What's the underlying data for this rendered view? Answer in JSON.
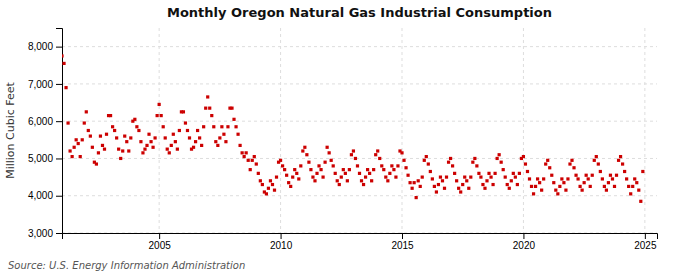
{
  "chart_data": {
    "type": "scatter",
    "title": "Monthly Oregon Natural Gas Industrial Consumption",
    "ylabel": "Million Cubic Feet",
    "source": "Source: U.S. Energy Information Administration",
    "color": "#cc0000",
    "marker": "square",
    "grid": true,
    "xlim": [
      2001.0,
      2025.5
    ],
    "xticks": [
      2005,
      2010,
      2015,
      2020,
      2025
    ],
    "ylim": [
      3000,
      8500
    ],
    "yticks": [
      {
        "value": 3000,
        "label": "3,000"
      },
      {
        "value": 4000,
        "label": "4,000"
      },
      {
        "value": 5000,
        "label": "5,000"
      },
      {
        "value": 6000,
        "label": "6,000"
      },
      {
        "value": 7000,
        "label": "7,000"
      },
      {
        "value": 8000,
        "label": "8,000"
      }
    ],
    "x": [
      2001.0,
      2001.083,
      2001.167,
      2001.25,
      2001.333,
      2001.417,
      2001.5,
      2001.583,
      2001.667,
      2001.75,
      2001.833,
      2001.917,
      2002.0,
      2002.083,
      2002.167,
      2002.25,
      2002.333,
      2002.417,
      2002.5,
      2002.583,
      2002.667,
      2002.75,
      2002.833,
      2002.917,
      2003.0,
      2003.083,
      2003.167,
      2003.25,
      2003.333,
      2003.417,
      2003.5,
      2003.583,
      2003.667,
      2003.75,
      2003.833,
      2003.917,
      2004.0,
      2004.083,
      2004.167,
      2004.25,
      2004.333,
      2004.417,
      2004.5,
      2004.583,
      2004.667,
      2004.75,
      2004.833,
      2004.917,
      2005.0,
      2005.083,
      2005.167,
      2005.25,
      2005.333,
      2005.417,
      2005.5,
      2005.583,
      2005.667,
      2005.75,
      2005.833,
      2005.917,
      2006.0,
      2006.083,
      2006.167,
      2006.25,
      2006.333,
      2006.417,
      2006.5,
      2006.583,
      2006.667,
      2006.75,
      2006.833,
      2006.917,
      2007.0,
      2007.083,
      2007.167,
      2007.25,
      2007.333,
      2007.417,
      2007.5,
      2007.583,
      2007.667,
      2007.75,
      2007.833,
      2007.917,
      2008.0,
      2008.083,
      2008.167,
      2008.25,
      2008.333,
      2008.417,
      2008.5,
      2008.583,
      2008.667,
      2008.75,
      2008.833,
      2008.917,
      2009.0,
      2009.083,
      2009.167,
      2009.25,
      2009.333,
      2009.417,
      2009.5,
      2009.583,
      2009.667,
      2009.75,
      2009.833,
      2009.917,
      2010.0,
      2010.083,
      2010.167,
      2010.25,
      2010.333,
      2010.417,
      2010.5,
      2010.583,
      2010.667,
      2010.75,
      2010.833,
      2010.917,
      2011.0,
      2011.083,
      2011.167,
      2011.25,
      2011.333,
      2011.417,
      2011.5,
      2011.583,
      2011.667,
      2011.75,
      2011.833,
      2011.917,
      2012.0,
      2012.083,
      2012.167,
      2012.25,
      2012.333,
      2012.417,
      2012.5,
      2012.583,
      2012.667,
      2012.75,
      2012.833,
      2012.917,
      2013.0,
      2013.083,
      2013.167,
      2013.25,
      2013.333,
      2013.417,
      2013.5,
      2013.583,
      2013.667,
      2013.75,
      2013.833,
      2013.917,
      2014.0,
      2014.083,
      2014.167,
      2014.25,
      2014.333,
      2014.417,
      2014.5,
      2014.583,
      2014.667,
      2014.75,
      2014.833,
      2014.917,
      2015.0,
      2015.083,
      2015.167,
      2015.25,
      2015.333,
      2015.417,
      2015.5,
      2015.583,
      2015.667,
      2015.75,
      2015.833,
      2015.917,
      2016.0,
      2016.083,
      2016.167,
      2016.25,
      2016.333,
      2016.417,
      2016.5,
      2016.583,
      2016.667,
      2016.75,
      2016.833,
      2016.917,
      2017.0,
      2017.083,
      2017.167,
      2017.25,
      2017.333,
      2017.417,
      2017.5,
      2017.583,
      2017.667,
      2017.75,
      2017.833,
      2017.917,
      2018.0,
      2018.083,
      2018.167,
      2018.25,
      2018.333,
      2018.417,
      2018.5,
      2018.583,
      2018.667,
      2018.75,
      2018.833,
      2018.917,
      2019.0,
      2019.083,
      2019.167,
      2019.25,
      2019.333,
      2019.417,
      2019.5,
      2019.583,
      2019.667,
      2019.75,
      2019.833,
      2019.917,
      2020.0,
      2020.083,
      2020.167,
      2020.25,
      2020.333,
      2020.417,
      2020.5,
      2020.583,
      2020.667,
      2020.75,
      2020.833,
      2020.917,
      2021.0,
      2021.083,
      2021.167,
      2021.25,
      2021.333,
      2021.417,
      2021.5,
      2021.583,
      2021.667,
      2021.75,
      2021.833,
      2021.917,
      2022.0,
      2022.083,
      2022.167,
      2022.25,
      2022.333,
      2022.417,
      2022.5,
      2022.583,
      2022.667,
      2022.75,
      2022.833,
      2022.917,
      2023.0,
      2023.083,
      2023.167,
      2023.25,
      2023.333,
      2023.417,
      2023.5,
      2023.583,
      2023.667,
      2023.75,
      2023.833,
      2023.917,
      2024.0,
      2024.083,
      2024.167,
      2024.25,
      2024.333,
      2024.417,
      2024.5,
      2024.583,
      2024.667,
      2024.75,
      2024.833,
      2024.917
    ],
    "values": [
      7750,
      7550,
      6900,
      5950,
      5200,
      5050,
      5300,
      5500,
      5400,
      5050,
      5500,
      5950,
      6250,
      5750,
      5600,
      5300,
      4900,
      4850,
      5150,
      5600,
      5350,
      5250,
      5650,
      6150,
      6150,
      5850,
      5750,
      5550,
      5250,
      5000,
      5200,
      5600,
      5450,
      5200,
      5550,
      6000,
      6050,
      5850,
      5750,
      5450,
      5150,
      5250,
      5350,
      5650,
      5450,
      5300,
      5550,
      6150,
      6450,
      6150,
      5850,
      5550,
      5250,
      5150,
      5350,
      5650,
      5450,
      5250,
      5750,
      6250,
      6250,
      5950,
      5750,
      5550,
      5250,
      5300,
      5450,
      5750,
      5550,
      5350,
      5850,
      6350,
      6650,
      6350,
      6150,
      5850,
      5450,
      5350,
      5550,
      5850,
      5650,
      5450,
      5850,
      6350,
      6350,
      6050,
      5850,
      5650,
      5350,
      5150,
      5050,
      5150,
      4950,
      4700,
      4950,
      5050,
      4850,
      4600,
      4400,
      4300,
      4100,
      4050,
      4200,
      4400,
      4300,
      4150,
      4500,
      4900,
      4950,
      4800,
      4700,
      4550,
      4350,
      4250,
      4500,
      4700,
      4600,
      4450,
      4800,
      5200,
      5300,
      5100,
      4900,
      4700,
      4500,
      4400,
      4600,
      4800,
      4700,
      4500,
      4900,
      5300,
      5150,
      4950,
      4800,
      4600,
      4400,
      4300,
      4500,
      4700,
      4600,
      4400,
      4700,
      5100,
      5200,
      5000,
      4800,
      4600,
      4400,
      4300,
      4500,
      4700,
      4600,
      4400,
      4700,
      5100,
      5200,
      5000,
      4800,
      4700,
      4500,
      4400,
      4600,
      4800,
      4700,
      4500,
      4800,
      5200,
      5150,
      4950,
      4750,
      4550,
      4350,
      4200,
      4350,
      3950,
      4400,
      4250,
      4500,
      4950,
      5050,
      4850,
      4650,
      4450,
      4250,
      4100,
      4300,
      4500,
      4400,
      4200,
      4500,
      4900,
      5000,
      4800,
      4600,
      4400,
      4200,
      4100,
      4300,
      4500,
      4400,
      4200,
      4500,
      4900,
      5000,
      4800,
      4600,
      4500,
      4300,
      4200,
      4400,
      4600,
      4500,
      4300,
      4600,
      5000,
      5100,
      4900,
      4700,
      4500,
      4300,
      4200,
      4400,
      4600,
      4500,
      4300,
      4600,
      5000,
      5050,
      4850,
      4650,
      4450,
      4250,
      4050,
      4250,
      4450,
      4350,
      4150,
      4450,
      4850,
      4950,
      4750,
      4550,
      4350,
      4150,
      4050,
      4250,
      4450,
      4350,
      4150,
      4450,
      4850,
      4950,
      4750,
      4550,
      4450,
      4250,
      4150,
      4350,
      4550,
      4450,
      4250,
      4550,
      4950,
      5050,
      4850,
      4650,
      4450,
      4250,
      4150,
      4350,
      4550,
      4450,
      4250,
      4550,
      4950,
      5050,
      4850,
      4650,
      4450,
      4250,
      4050,
      4250,
      4450,
      4350,
      4150,
      3850,
      4650
    ]
  }
}
